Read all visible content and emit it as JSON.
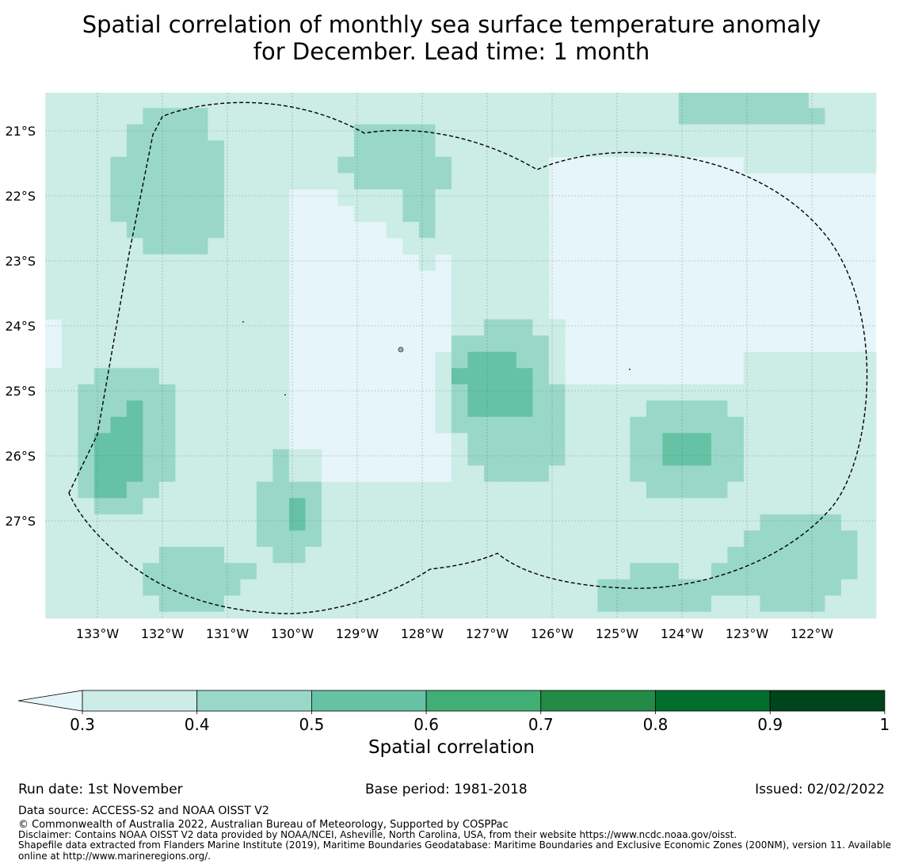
{
  "title": {
    "line1": "Spatial correlation of monthly sea surface temperature anomaly",
    "line2": "for December. Lead time: 1 month"
  },
  "map": {
    "lat_labels": [
      "21°S",
      "22°S",
      "23°S",
      "24°S",
      "25°S",
      "26°S",
      "27°S"
    ],
    "lon_labels": [
      "133°W",
      "132°W",
      "131°W",
      "130°W",
      "129°W",
      "128°W",
      "127°W",
      "126°W",
      "125°W",
      "124°W",
      "123°W",
      "122°W"
    ],
    "lon_range": [
      -133.8,
      -121.0
    ],
    "lat_range": [
      -28.5,
      -20.4
    ],
    "cell_deg": 0.25,
    "colors": {
      "bg": "#e5f5f9",
      "c03": "#ccece6",
      "c04": "#99d8c9",
      "c05": "#66c2a4",
      "grid": "#555555",
      "eez": "#000000"
    }
  },
  "colorbar": {
    "ticks": [
      "0.3",
      "0.4",
      "0.5",
      "0.6",
      "0.7",
      "0.8",
      "0.9",
      "1"
    ],
    "colors": [
      "#ccece6",
      "#99d8c9",
      "#66c2a4",
      "#41ae76",
      "#238b45",
      "#006d2c",
      "#00441b"
    ],
    "extend_color": "#e5f5f9",
    "label": "Spatial correlation"
  },
  "footer": {
    "run_date": "Run date: 1st November",
    "base_period": "Base period: 1981-2018",
    "issued": "Issued: 02/02/2022",
    "data_source": "Data source: ACCESS-S2 and NOAA OISST V2",
    "copyright": "© Commonwealth of Australia 2022, Australian Bureau of Meteorology, Supported by COSPPac",
    "disclaimer": "Disclaimer: Contains NOAA OISST V2 data provided by NOAA/NCEI, Asheville, North Carolina, USA, from their website https://www.ncdc.noaa.gov/oisst.",
    "shapefile": "Shapefile data extracted from Flanders Marine Institute (2019), Maritime Boundaries Geodatabase: Maritime Boundaries and Exclusive Economic Zones (200NM), version 11. Available online at http://www.marineregions.org/."
  }
}
